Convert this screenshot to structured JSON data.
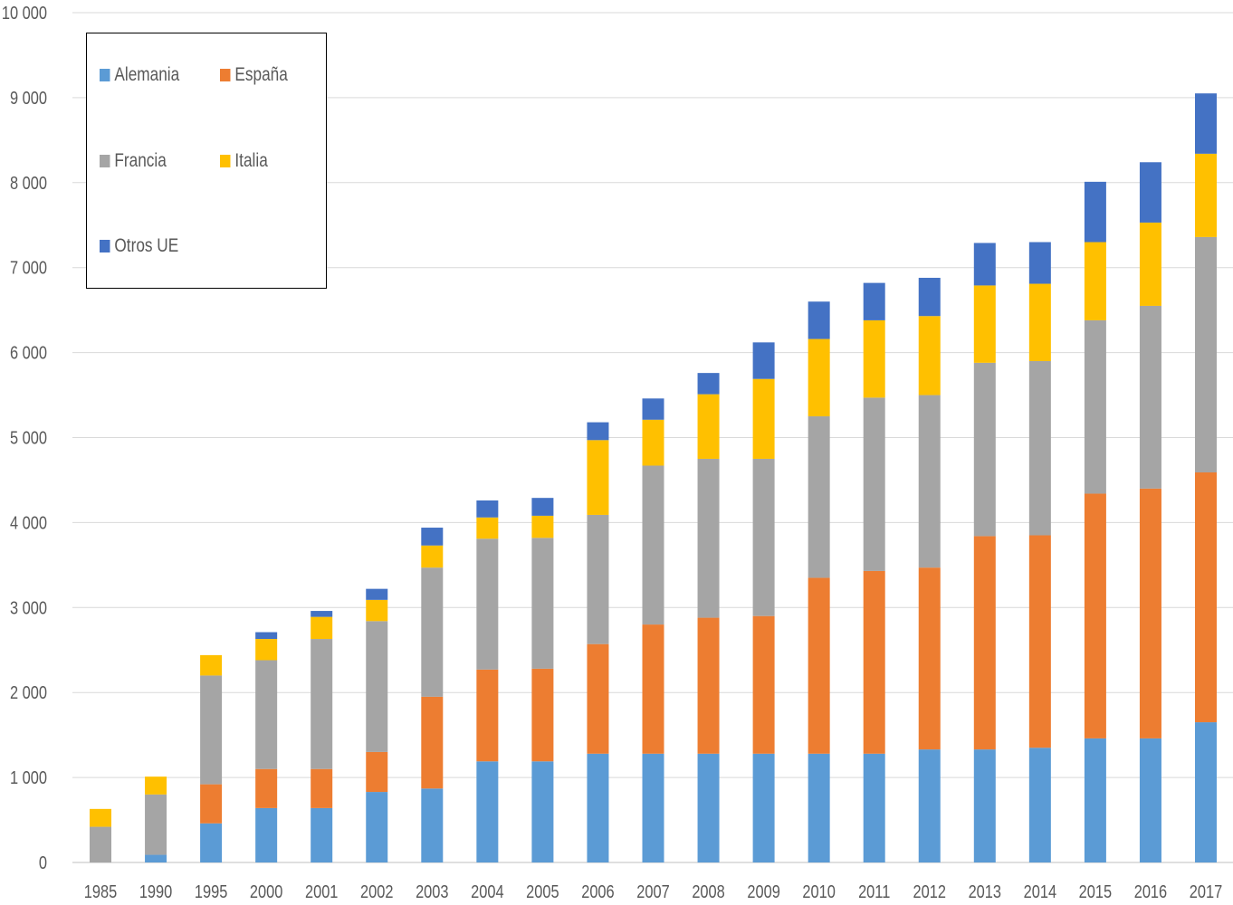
{
  "chart_data": {
    "type": "bar",
    "stacked": true,
    "title": "",
    "xlabel": "",
    "ylabel": "",
    "ylim": [
      0,
      10000
    ],
    "yticks": [
      0,
      1000,
      2000,
      3000,
      4000,
      5000,
      6000,
      7000,
      8000,
      9000,
      10000
    ],
    "ytick_labels": [
      "0",
      "1 000",
      "2 000",
      "3 000",
      "4 000",
      "5 000",
      "6 000",
      "7 000",
      "8 000",
      "9 000",
      "10 000"
    ],
    "grid": true,
    "legend_placement": "top-left",
    "categories": [
      "1985",
      "1990",
      "1995",
      "2000",
      "2001",
      "2002",
      "2003",
      "2004",
      "2005",
      "2006",
      "2007",
      "2008",
      "2009",
      "2010",
      "2011",
      "2012",
      "2013",
      "2014",
      "2015",
      "2016",
      "2017"
    ],
    "series": [
      {
        "name": "Alemania",
        "color": "#5B9BD5",
        "values": [
          0,
          90,
          460,
          640,
          640,
          830,
          870,
          1190,
          1190,
          1280,
          1280,
          1280,
          1280,
          1280,
          1280,
          1330,
          1330,
          1350,
          1460,
          1460,
          1650
        ]
      },
      {
        "name": "España",
        "color": "#ED7D31",
        "values": [
          0,
          0,
          460,
          460,
          460,
          470,
          1080,
          1080,
          1090,
          1290,
          1520,
          1600,
          1620,
          2070,
          2150,
          2140,
          2510,
          2500,
          2880,
          2940,
          2940
        ]
      },
      {
        "name": "Francia",
        "color": "#A5A5A5",
        "values": [
          420,
          710,
          1280,
          1280,
          1530,
          1540,
          1520,
          1540,
          1540,
          1520,
          1870,
          1870,
          1850,
          1900,
          2040,
          2030,
          2040,
          2050,
          2040,
          2150,
          2770
        ]
      },
      {
        "name": "Italia",
        "color": "#FFC000",
        "values": [
          210,
          210,
          240,
          250,
          260,
          250,
          260,
          250,
          260,
          880,
          540,
          760,
          940,
          910,
          910,
          930,
          910,
          910,
          920,
          980,
          980
        ]
      },
      {
        "name": "Otros UE",
        "color": "#4472C4",
        "values": [
          0,
          0,
          0,
          80,
          70,
          130,
          210,
          200,
          210,
          210,
          250,
          250,
          430,
          440,
          440,
          450,
          500,
          490,
          710,
          710,
          710
        ]
      }
    ]
  }
}
